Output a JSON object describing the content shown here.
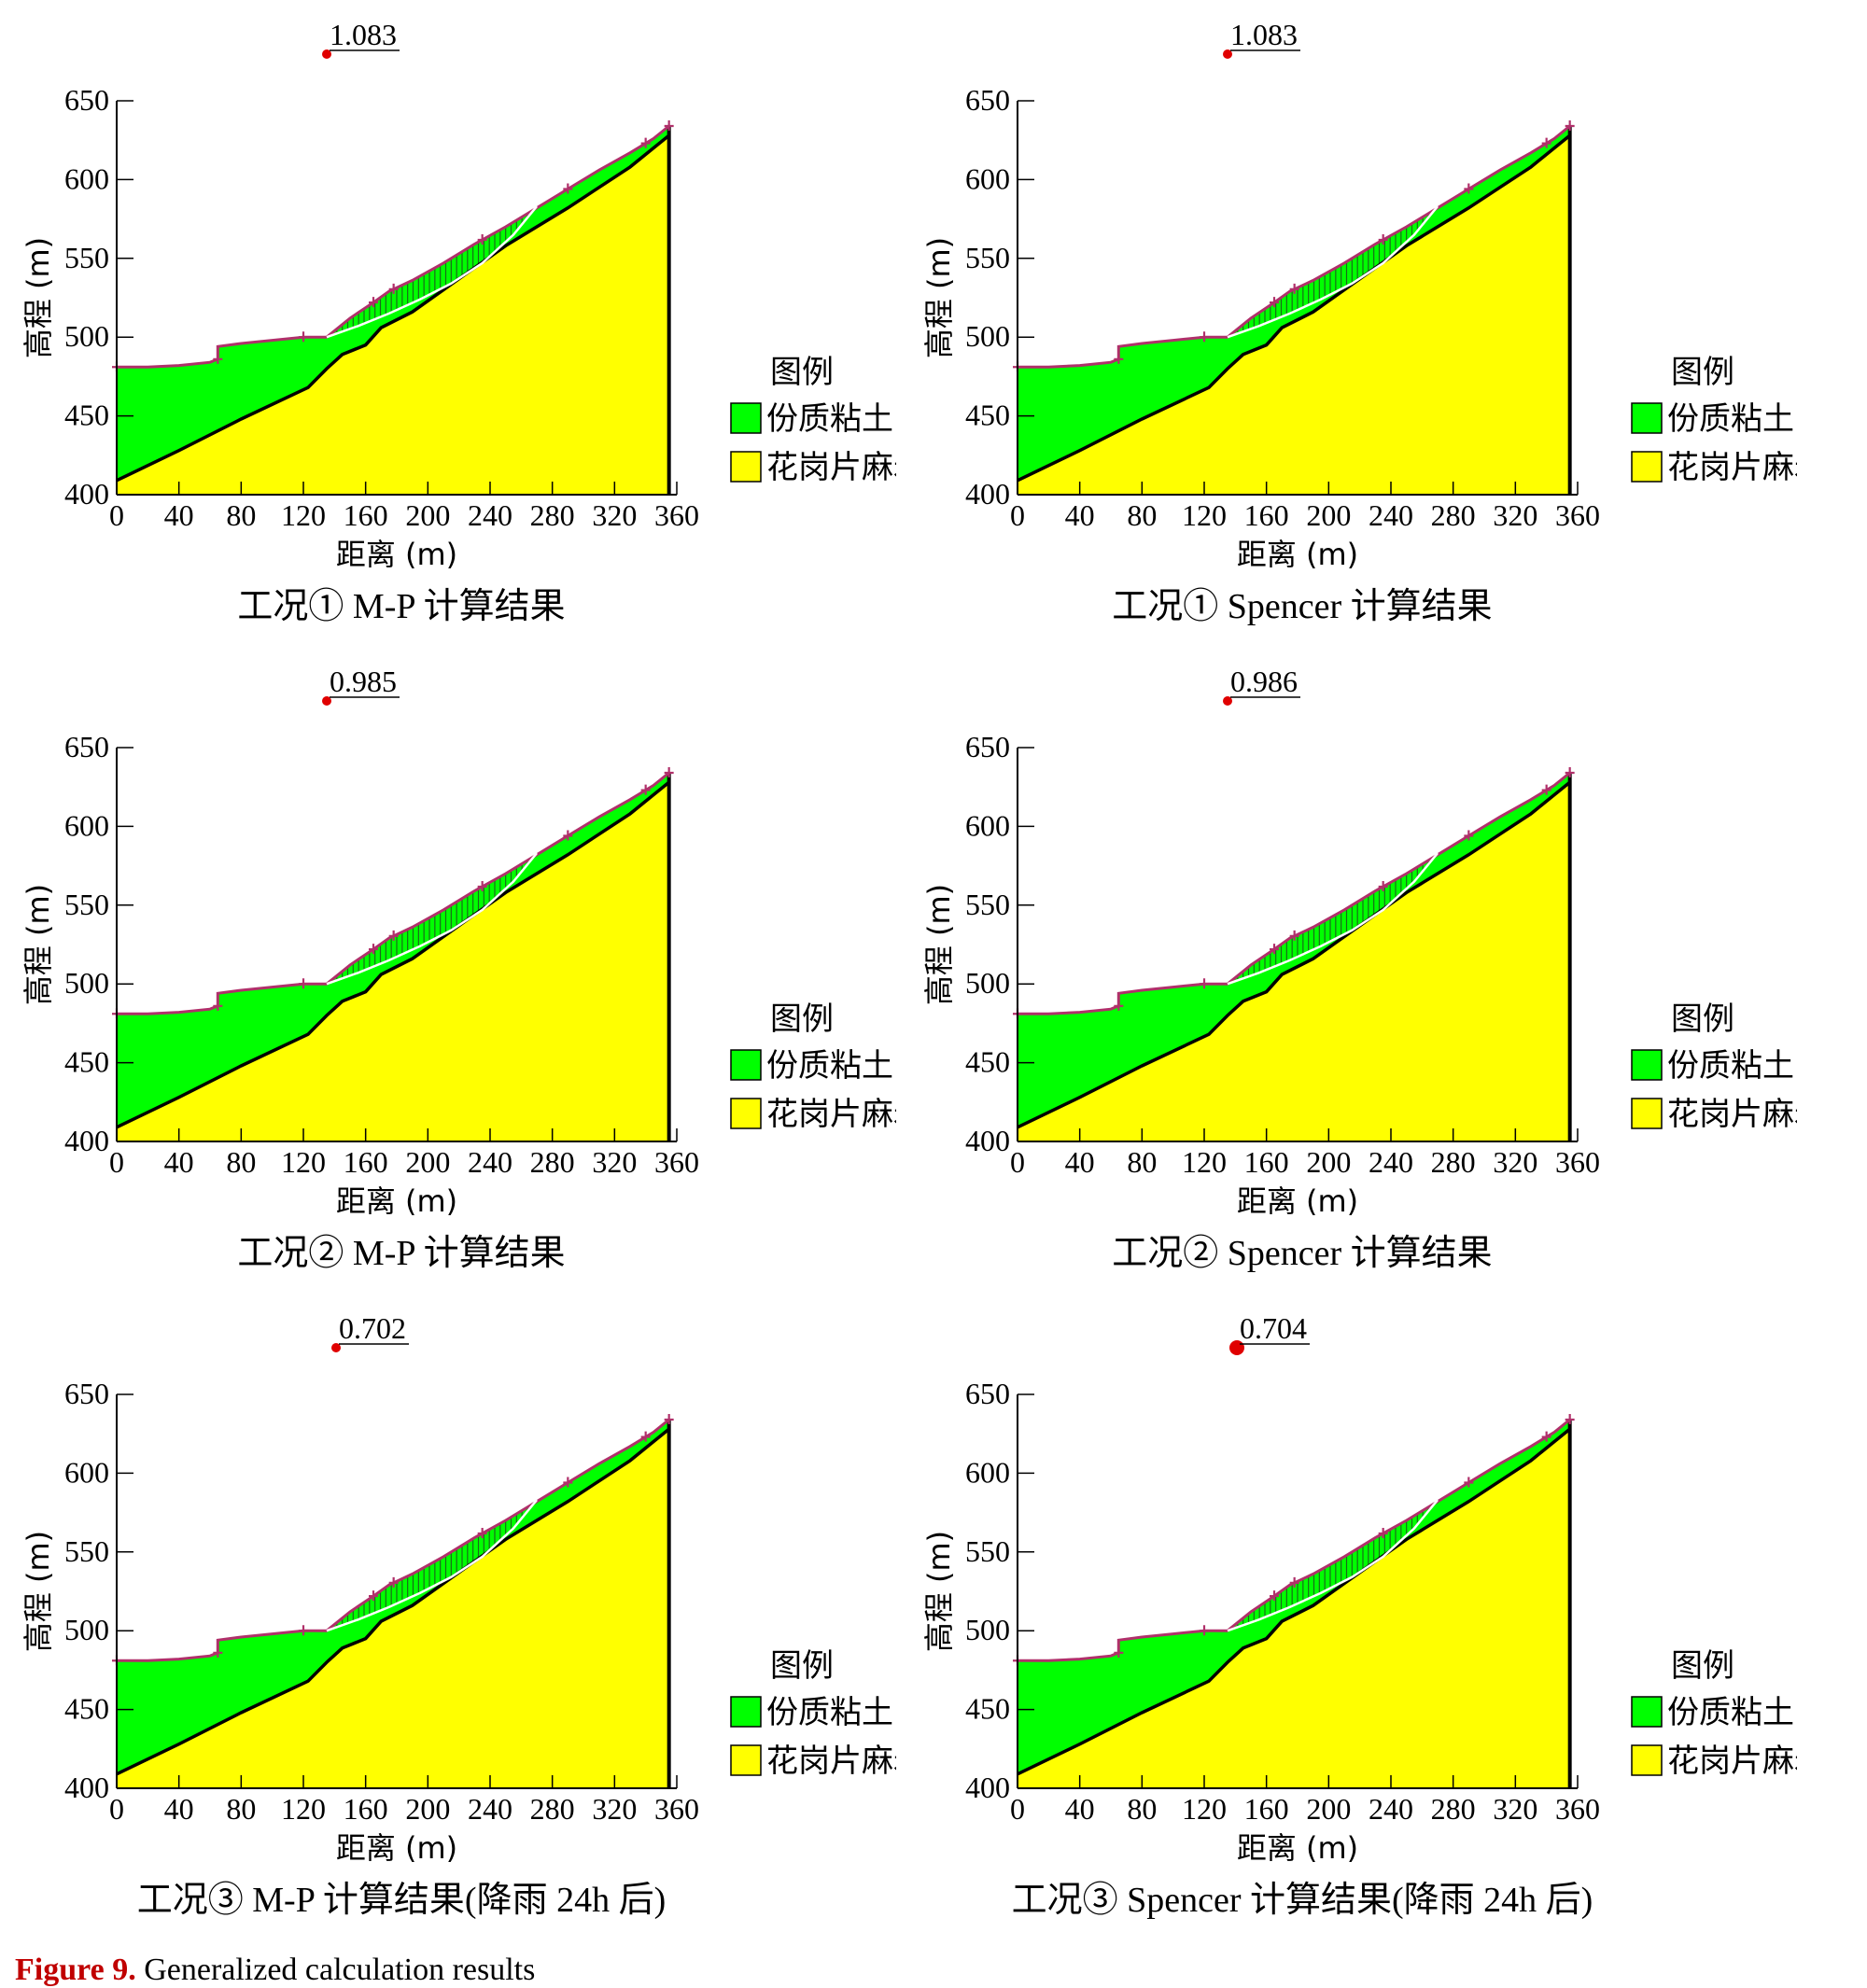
{
  "figure_caption": {
    "label": "Figure 9.",
    "text": "Generalized calculation results"
  },
  "legend": {
    "title": "图例",
    "items": [
      {
        "label": "份质粘土",
        "color": "#00ff00"
      },
      {
        "label": "花岗片麻岩石",
        "color": "#ffff00"
      }
    ]
  },
  "chart_data": [
    {
      "type": "area",
      "caption": "工况① M-P 计算结果",
      "fs": "1.083",
      "xlabel": "距离 (m)",
      "ylabel": "高程 (m)",
      "xlim": [
        0,
        360
      ],
      "ylim": [
        400,
        650
      ],
      "xticks": [
        0,
        40,
        80,
        120,
        160,
        200,
        240,
        280,
        320,
        360
      ],
      "yticks": [
        400,
        450,
        500,
        550,
        600,
        650
      ]
    },
    {
      "type": "area",
      "caption": "工况① Spencer 计算结果",
      "fs": "1.083",
      "xlabel": "距离 (m)",
      "ylabel": "高程 (m)",
      "xlim": [
        0,
        360
      ],
      "ylim": [
        400,
        650
      ],
      "xticks": [
        0,
        40,
        80,
        120,
        160,
        200,
        240,
        280,
        320,
        360
      ],
      "yticks": [
        400,
        450,
        500,
        550,
        600,
        650
      ]
    },
    {
      "type": "area",
      "caption": "工况② M-P 计算结果",
      "fs": "0.985",
      "xlabel": "距离 (m)",
      "ylabel": "高程 (m)",
      "xlim": [
        0,
        360
      ],
      "ylim": [
        400,
        650
      ],
      "xticks": [
        0,
        40,
        80,
        120,
        160,
        200,
        240,
        280,
        320,
        360
      ],
      "yticks": [
        400,
        450,
        500,
        550,
        600,
        650
      ]
    },
    {
      "type": "area",
      "caption": "工况② Spencer 计算结果",
      "fs": "0.986",
      "xlabel": "距离 (m)",
      "ylabel": "高程 (m)",
      "xlim": [
        0,
        360
      ],
      "ylim": [
        400,
        650
      ],
      "xticks": [
        0,
        40,
        80,
        120,
        160,
        200,
        240,
        280,
        320,
        360
      ],
      "yticks": [
        400,
        450,
        500,
        550,
        600,
        650
      ]
    },
    {
      "type": "area",
      "caption": "工况③  M-P 计算结果(降雨 24h 后)",
      "fs": "0.702",
      "xlabel": "距离 (m)",
      "ylabel": "高程 (m)",
      "xlim": [
        0,
        360
      ],
      "ylim": [
        400,
        650
      ],
      "xticks": [
        0,
        40,
        80,
        120,
        160,
        200,
        240,
        280,
        320,
        360
      ],
      "yticks": [
        400,
        450,
        500,
        550,
        600,
        650
      ]
    },
    {
      "type": "area",
      "caption": "工况③ Spencer 计算结果(降雨 24h 后)",
      "fs": "0.704",
      "xlabel": "距离 (m)",
      "ylabel": "高程 (m)",
      "xlim": [
        0,
        360
      ],
      "ylim": [
        400,
        650
      ],
      "xticks": [
        0,
        40,
        80,
        120,
        160,
        200,
        240,
        280,
        320,
        360
      ],
      "yticks": [
        400,
        450,
        500,
        550,
        600,
        650
      ]
    }
  ],
  "profile": {
    "ground_surface": [
      [
        0,
        481
      ],
      [
        20,
        481
      ],
      [
        40,
        482
      ],
      [
        60,
        484
      ],
      [
        65,
        486
      ],
      [
        65,
        494
      ],
      [
        80,
        496
      ],
      [
        100,
        498
      ],
      [
        120,
        500
      ],
      [
        135,
        500
      ],
      [
        150,
        512
      ],
      [
        165,
        522
      ],
      [
        175,
        529
      ],
      [
        190,
        536
      ],
      [
        210,
        547
      ],
      [
        230,
        559
      ],
      [
        250,
        570
      ],
      [
        270,
        582
      ],
      [
        290,
        594
      ],
      [
        310,
        606
      ],
      [
        330,
        617
      ],
      [
        345,
        626
      ],
      [
        355,
        634
      ]
    ],
    "rock_surface": [
      [
        0,
        409
      ],
      [
        40,
        428
      ],
      [
        80,
        448
      ],
      [
        123,
        468
      ],
      [
        135,
        480
      ],
      [
        145,
        489
      ],
      [
        160,
        495
      ],
      [
        170,
        506
      ],
      [
        190,
        516
      ],
      [
        210,
        530
      ],
      [
        230,
        544
      ],
      [
        250,
        558
      ],
      [
        270,
        570
      ],
      [
        290,
        582
      ],
      [
        310,
        595
      ],
      [
        330,
        608
      ],
      [
        345,
        620
      ],
      [
        355,
        628
      ]
    ],
    "slip_surface": [
      [
        135,
        500
      ],
      [
        155,
        507
      ],
      [
        175,
        515
      ],
      [
        195,
        524
      ],
      [
        215,
        534
      ],
      [
        235,
        547
      ],
      [
        255,
        565
      ],
      [
        270,
        583
      ]
    ]
  },
  "colors": {
    "soil": "#00ff00",
    "rock": "#ffff00",
    "surface_line": "#b0306a",
    "slip_line": "#ffffff",
    "fs_dot": "#e00000"
  }
}
